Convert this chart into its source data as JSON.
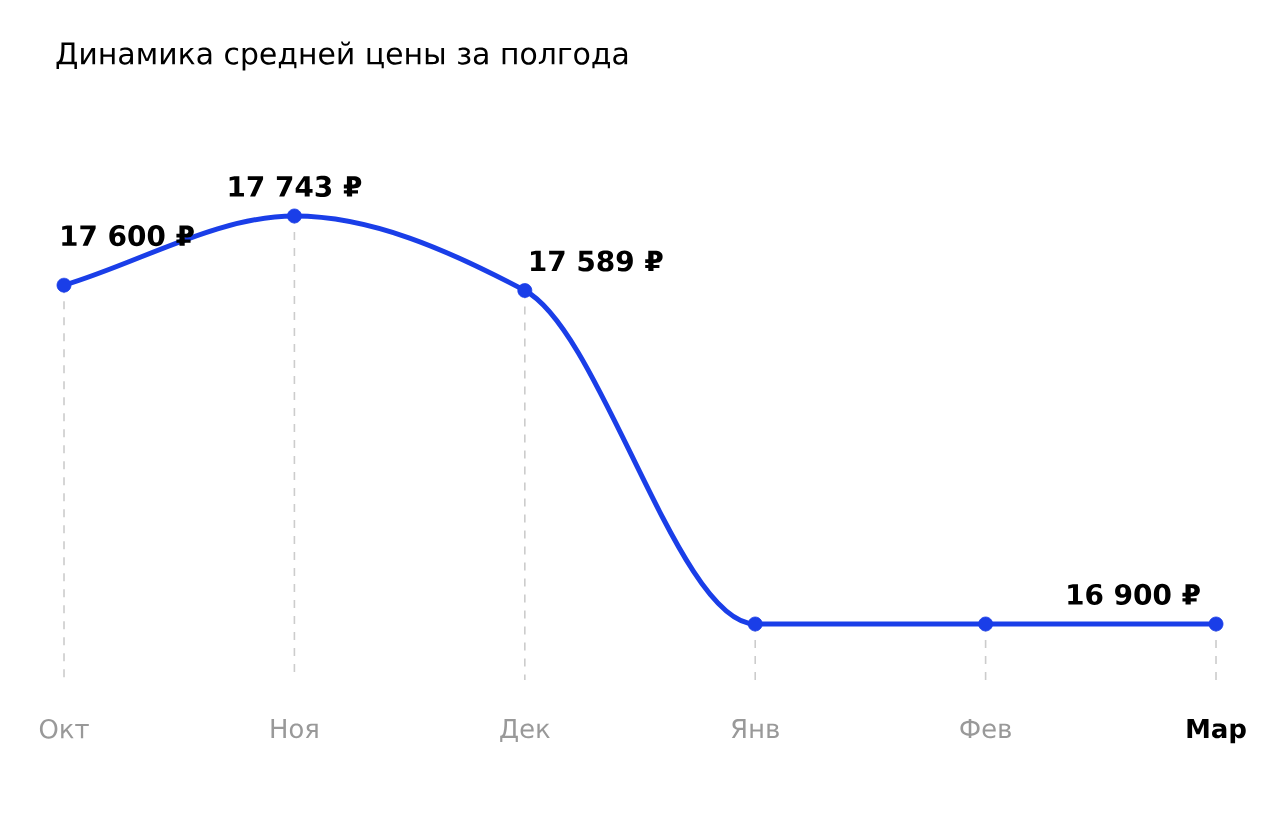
{
  "chart_data": {
    "type": "line",
    "title": "Динамика средней цены за полгода",
    "categories": [
      "Окт",
      "Ноя",
      "Дек",
      "Янв",
      "Фев",
      "Мар"
    ],
    "values": [
      17600,
      17743,
      17589,
      16900,
      16900,
      16900
    ],
    "value_labels": [
      "17 600 ₽",
      "17 743 ₽",
      "17 589 ₽",
      null,
      null,
      "16 900 ₽"
    ],
    "color": "#1a3ee8",
    "marker": "circle",
    "grid": "x"
  }
}
